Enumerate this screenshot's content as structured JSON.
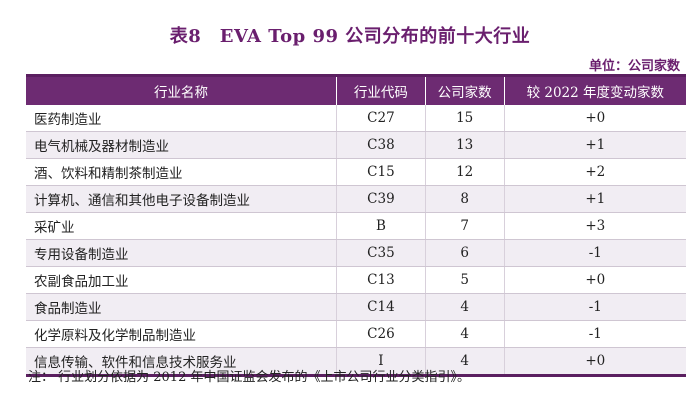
{
  "title": "表8　EVA Top 99 公司分布的前十大行业",
  "unit": "单位：公司家数",
  "headers": [
    "行业名称",
    "行业代码",
    "公司家数",
    "较 2022 年度变动家数"
  ],
  "rows": [
    [
      "医药制造业",
      "C27",
      "15",
      "+0"
    ],
    [
      "电气机械及器材制造业",
      "C38",
      "13",
      "+1"
    ],
    [
      "酒、饮料和精制茶制造业",
      "C15",
      "12",
      "+2"
    ],
    [
      "计算机、通信和其他电子设备制造业",
      "C39",
      "8",
      "+1"
    ],
    [
      "采矿业",
      "B",
      "7",
      "+3"
    ],
    [
      "专用设备制造业",
      "C35",
      "6",
      "-1"
    ],
    [
      "农副食品加工业",
      "C13",
      "5",
      "+0"
    ],
    [
      "食品制造业",
      "C14",
      "4",
      "-1"
    ],
    [
      "化学原料及化学制品制造业",
      "C26",
      "4",
      "-1"
    ],
    [
      "信息传输、软件和信息技术服务业",
      "I",
      "4",
      "+0"
    ]
  ],
  "note": "注：  行业划分依据为 2012 年中国证监会发布的《上市公司行业分类指引》。"
}
